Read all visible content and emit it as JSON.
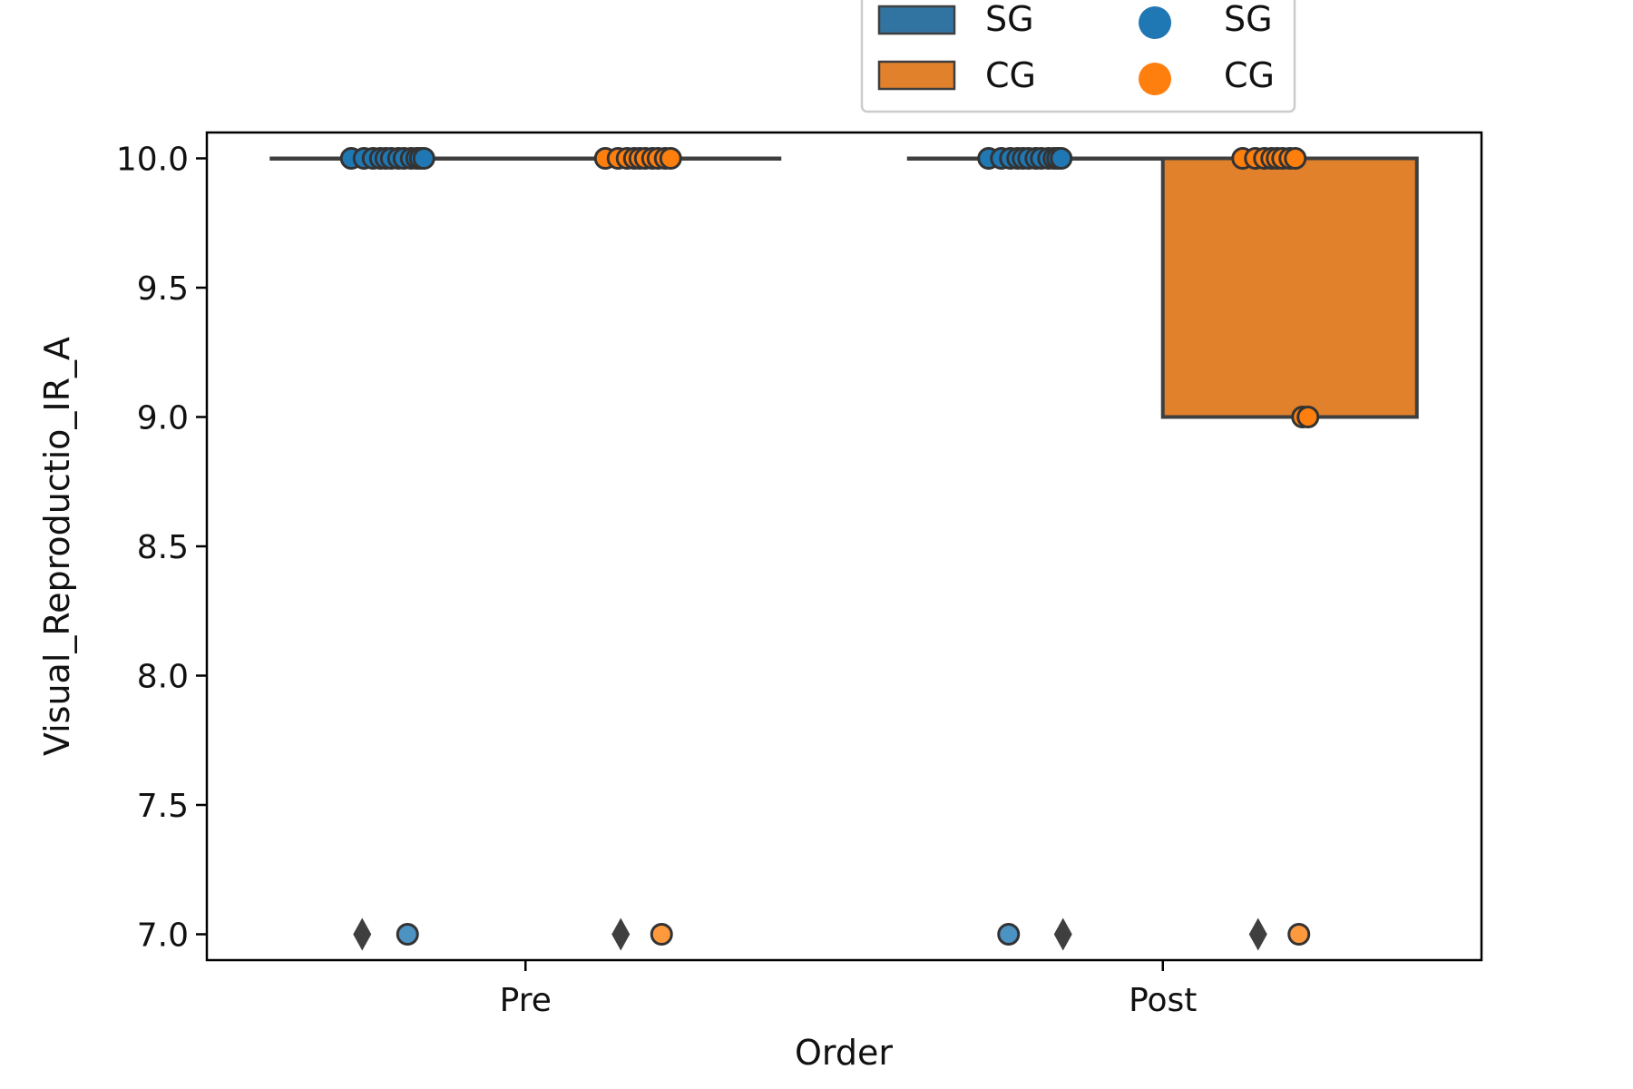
{
  "chart_data": {
    "type": "box",
    "title": "",
    "xlabel": "Order",
    "ylabel": "Visual_Reproductio_IR_A",
    "categories": [
      "Pre",
      "Post"
    ],
    "ylim": [
      6.9,
      10.1
    ],
    "yticks": [
      7.0,
      7.5,
      8.0,
      8.5,
      9.0,
      9.5,
      10.0
    ],
    "ytick_labels": [
      "7.0",
      "7.5",
      "8.0",
      "8.5",
      "9.0",
      "9.5",
      "10.0"
    ],
    "grid": false,
    "legend_position": "top-center",
    "legend": {
      "box_entries": [
        "SG",
        "CG"
      ],
      "point_entries": [
        "SG",
        "CG"
      ]
    },
    "series": [
      {
        "name": "SG",
        "box_color": "#3274a1",
        "point_color": "#1f77b4",
        "boxes": [
          {
            "category": "Pre",
            "q1": 10.0,
            "median": 10.0,
            "q3": 10.0,
            "whisker_low": 10.0,
            "whisker_high": 10.0,
            "outliers": [
              7.0
            ]
          },
          {
            "category": "Post",
            "q1": 10.0,
            "median": 10.0,
            "q3": 10.0,
            "whisker_low": 10.0,
            "whisker_high": 10.0,
            "outliers": [
              7.0
            ]
          }
        ],
        "points": [
          {
            "category": "Pre",
            "values": [
              10,
              10,
              10,
              10,
              10,
              10,
              10,
              10,
              10,
              10,
              10,
              10,
              7
            ]
          },
          {
            "category": "Post",
            "values": [
              10,
              10,
              10,
              10,
              10,
              10,
              10,
              10,
              10,
              10,
              10,
              10,
              7
            ]
          }
        ]
      },
      {
        "name": "CG",
        "box_color": "#e1812c",
        "point_color": "#ff7f0e",
        "boxes": [
          {
            "category": "Pre",
            "q1": 10.0,
            "median": 10.0,
            "q3": 10.0,
            "whisker_low": 10.0,
            "whisker_high": 10.0,
            "outliers": [
              7.0
            ]
          },
          {
            "category": "Post",
            "q1": 9.0,
            "median": 10.0,
            "q3": 10.0,
            "whisker_low": 9.0,
            "whisker_high": 10.0,
            "outliers": [
              7.0
            ]
          }
        ],
        "points": [
          {
            "category": "Pre",
            "values": [
              10,
              10,
              10,
              10,
              10,
              10,
              10,
              10,
              10,
              10,
              7
            ]
          },
          {
            "category": "Post",
            "values": [
              10,
              10,
              10,
              10,
              10,
              10,
              10,
              10,
              9,
              9,
              7
            ]
          }
        ]
      }
    ]
  }
}
